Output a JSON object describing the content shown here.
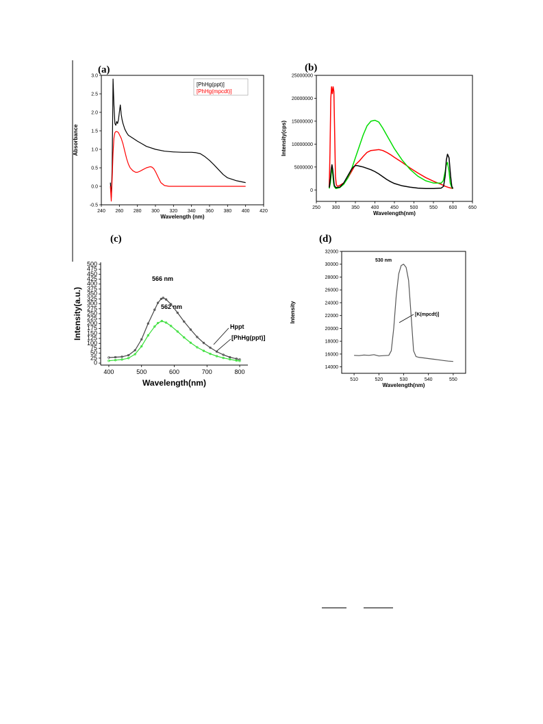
{
  "chart_data": [
    {
      "panel_label": "(a)",
      "type": "line",
      "xlabel": "Wavelength (nm)",
      "ylabel": "Absorbance",
      "xlim": [
        240,
        420
      ],
      "ylim": [
        -0.5,
        3.0
      ],
      "xticks": [
        240,
        260,
        280,
        300,
        320,
        340,
        360,
        380,
        400,
        420
      ],
      "yticks": [
        -0.5,
        0.0,
        0.5,
        1.0,
        1.5,
        2.0,
        2.5,
        3.0
      ],
      "grid": false,
      "legend": "top-right",
      "series": [
        {
          "name": "[PhHg(ppt)]",
          "color": "#000000",
          "x": [
            250,
            251,
            252,
            253,
            254,
            255,
            256,
            257,
            258,
            259,
            260,
            261,
            262,
            263,
            264,
            266,
            268,
            270,
            275,
            280,
            285,
            290,
            300,
            310,
            320,
            330,
            340,
            345,
            350,
            355,
            360,
            365,
            370,
            375,
            380,
            390,
            400
          ],
          "y": [
            0.1,
            -0.3,
            0.5,
            2.9,
            2.2,
            1.7,
            1.65,
            1.75,
            1.7,
            1.8,
            2.0,
            2.2,
            1.95,
            1.8,
            1.7,
            1.55,
            1.45,
            1.38,
            1.3,
            1.22,
            1.15,
            1.08,
            1.0,
            0.95,
            0.93,
            0.92,
            0.92,
            0.91,
            0.88,
            0.8,
            0.7,
            0.58,
            0.45,
            0.32,
            0.23,
            0.15,
            0.1
          ]
        },
        {
          "name": "[PhHg(mpcdt)]",
          "color": "#ff0000",
          "x": [
            250,
            251,
            252,
            253,
            254,
            255,
            256,
            257,
            258,
            259,
            260,
            262,
            264,
            266,
            268,
            270,
            272,
            275,
            278,
            280,
            283,
            286,
            290,
            294,
            296,
            298,
            300,
            303,
            306,
            310,
            315,
            320,
            330,
            340,
            360,
            380,
            400
          ],
          "y": [
            0.0,
            -0.4,
            0.2,
            0.9,
            1.3,
            1.45,
            1.48,
            1.48,
            1.47,
            1.45,
            1.4,
            1.3,
            1.15,
            0.95,
            0.75,
            0.6,
            0.5,
            0.42,
            0.38,
            0.38,
            0.41,
            0.45,
            0.5,
            0.53,
            0.52,
            0.48,
            0.4,
            0.25,
            0.1,
            0.02,
            0.0,
            0.0,
            0.0,
            0.0,
            0.0,
            0.0,
            0.0
          ]
        }
      ]
    },
    {
      "panel_label": "(b)",
      "type": "line",
      "xlabel": "Wavelength(nm)",
      "ylabel": "Intensity(cps)",
      "xlim": [
        250,
        650
      ],
      "ylim": [
        -2500000,
        25000000
      ],
      "xticks": [
        250,
        300,
        350,
        400,
        450,
        500,
        550,
        600,
        650
      ],
      "yticks": [
        0,
        5000000,
        10000000,
        15000000,
        20000000,
        25000000
      ],
      "grid": false,
      "series": [
        {
          "name": "",
          "color": "#ff0000",
          "x": [
            283,
            285,
            287,
            289,
            291,
            293,
            295,
            297,
            299,
            301,
            303,
            305,
            310,
            320,
            330,
            340,
            350,
            360,
            370,
            380,
            390,
            400,
            410,
            420,
            430,
            440,
            450,
            470,
            490,
            510,
            530,
            550,
            570,
            580,
            590,
            600
          ],
          "y": [
            500000,
            8000000,
            20000000,
            22500000,
            21000000,
            22500000,
            21500000,
            12000000,
            3000000,
            1200000,
            900000,
            800000,
            1000000,
            1500000,
            2500000,
            4000000,
            5500000,
            6300000,
            7300000,
            8200000,
            8600000,
            8700000,
            8800000,
            8600000,
            8200000,
            7700000,
            7100000,
            6000000,
            4800000,
            3700000,
            2700000,
            1900000,
            1200000,
            800000,
            500000,
            300000
          ]
        },
        {
          "name": "",
          "color": "#00dd00",
          "x": [
            283,
            286,
            288,
            290,
            292,
            294,
            296,
            300,
            310,
            320,
            330,
            340,
            350,
            360,
            370,
            380,
            390,
            400,
            410,
            420,
            430,
            440,
            450,
            470,
            490,
            510,
            530,
            550,
            570,
            575,
            580,
            583,
            586,
            590,
            593,
            597,
            600
          ],
          "y": [
            300000,
            1500000,
            3500000,
            4800000,
            3500000,
            1500000,
            700000,
            300000,
            500000,
            1200000,
            2500000,
            4500000,
            7000000,
            9500000,
            12000000,
            14000000,
            15000000,
            15200000,
            14800000,
            13500000,
            12000000,
            10500000,
            9000000,
            6500000,
            4500000,
            3000000,
            2000000,
            1500000,
            1500000,
            2000000,
            4000000,
            5500000,
            6000000,
            4000000,
            1500000,
            500000,
            300000
          ]
        },
        {
          "name": "",
          "color": "#000000",
          "x": [
            283,
            286,
            288,
            290,
            292,
            294,
            296,
            300,
            310,
            320,
            330,
            340,
            345,
            350,
            355,
            360,
            370,
            380,
            390,
            400,
            410,
            420,
            430,
            440,
            450,
            470,
            490,
            510,
            530,
            550,
            570,
            576,
            580,
            583,
            586,
            590,
            594,
            597,
            600
          ],
          "y": [
            500000,
            2500000,
            4500000,
            5500000,
            4500000,
            2500000,
            1000000,
            500000,
            600000,
            1500000,
            3000000,
            4500000,
            5000000,
            5300000,
            5300000,
            5200000,
            5000000,
            4700000,
            4400000,
            4000000,
            3500000,
            2900000,
            2300000,
            1800000,
            1400000,
            900000,
            600000,
            400000,
            300000,
            300000,
            400000,
            800000,
            3000000,
            6500000,
            7800000,
            7000000,
            3000000,
            800000,
            300000
          ]
        }
      ]
    },
    {
      "panel_label": "(c)",
      "type": "line",
      "xlabel": "Wavelength(nm)",
      "ylabel": "Intensity(a.u.)",
      "xlim": [
        375,
        825
      ],
      "ylim": [
        -10,
        510
      ],
      "xticks": [
        400,
        500,
        600,
        700,
        800
      ],
      "yticks": [
        0,
        25,
        50,
        75,
        100,
        125,
        150,
        175,
        200,
        225,
        250,
        275,
        300,
        325,
        350,
        375,
        400,
        425,
        450,
        475,
        500
      ],
      "grid": false,
      "annotations": [
        "566 nm",
        "562 nm",
        "Hppt",
        "[PhHg(ppt)]"
      ],
      "series": [
        {
          "name": "Hppt",
          "color": "#444444",
          "x": [
            400,
            420,
            440,
            460,
            480,
            500,
            520,
            540,
            550,
            560,
            566,
            575,
            590,
            610,
            630,
            650,
            670,
            690,
            710,
            730,
            750,
            770,
            790,
            800
          ],
          "y": [
            28,
            30,
            32,
            40,
            65,
            120,
            200,
            270,
            305,
            325,
            330,
            322,
            298,
            255,
            210,
            170,
            132,
            102,
            78,
            58,
            42,
            30,
            22,
            18
          ]
        },
        {
          "name": "[PhHg(ppt)]",
          "color": "#33dd33",
          "x": [
            400,
            420,
            440,
            460,
            480,
            500,
            520,
            540,
            550,
            562,
            575,
            590,
            610,
            630,
            650,
            670,
            690,
            710,
            730,
            750,
            770,
            790,
            800
          ],
          "y": [
            12,
            15,
            18,
            25,
            45,
            85,
            140,
            185,
            203,
            213,
            205,
            188,
            160,
            130,
            103,
            80,
            62,
            47,
            35,
            26,
            19,
            13,
            11
          ]
        }
      ]
    },
    {
      "panel_label": "(d)",
      "type": "line",
      "xlabel": "Wavelength(nm)",
      "ylabel": "Intensity",
      "xlim": [
        505,
        555
      ],
      "ylim": [
        13000,
        32000
      ],
      "xticks": [
        510,
        520,
        530,
        540,
        550
      ],
      "yticks": [
        14000,
        16000,
        18000,
        20000,
        22000,
        24000,
        26000,
        28000,
        30000,
        32000
      ],
      "grid": false,
      "annotations": [
        "530 nm",
        "[K(mpcdt)]"
      ],
      "series": [
        {
          "name": "[K(mpcdt)]",
          "color": "#555555",
          "x": [
            510,
            512,
            514,
            516,
            518,
            520,
            522,
            524,
            525,
            526,
            527,
            528,
            529,
            530,
            531,
            532,
            533,
            534,
            535,
            536,
            538,
            540,
            542,
            544,
            546,
            548,
            550
          ],
          "y": [
            15800,
            15750,
            15850,
            15800,
            15900,
            15700,
            15750,
            15800,
            16500,
            20000,
            25000,
            28500,
            29800,
            30000,
            29500,
            27500,
            22000,
            16500,
            15600,
            15500,
            15400,
            15300,
            15200,
            15100,
            15000,
            14900,
            14850
          ]
        }
      ]
    }
  ]
}
